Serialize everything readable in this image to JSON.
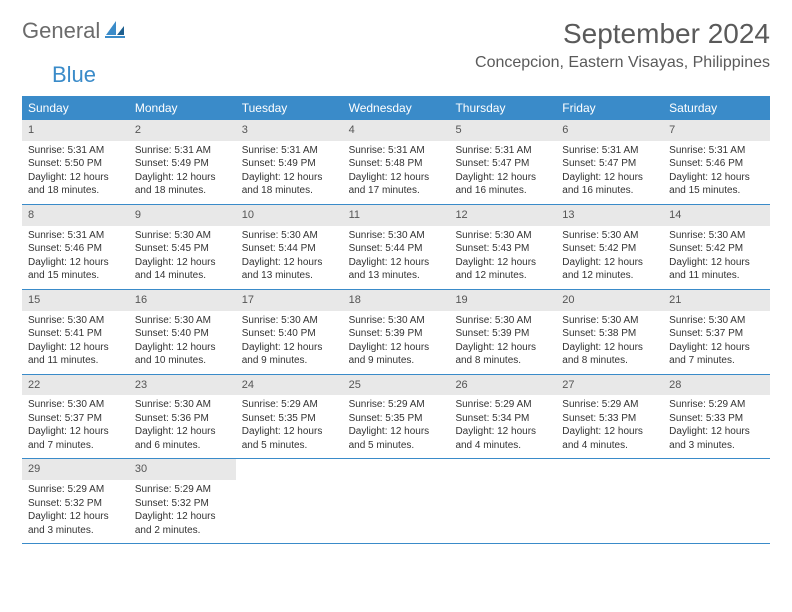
{
  "logo": {
    "word1": "General",
    "word2": "Blue"
  },
  "title": "September 2024",
  "location": "Concepcion, Eastern Visayas, Philippines",
  "colors": {
    "header_bg": "#3a8bc9",
    "daynum_bg": "#e8e8e8",
    "text": "#333333",
    "title_text": "#5a5a5a",
    "border": "#3a8bc9"
  },
  "day_headers": [
    "Sunday",
    "Monday",
    "Tuesday",
    "Wednesday",
    "Thursday",
    "Friday",
    "Saturday"
  ],
  "weeks": [
    [
      {
        "n": "1",
        "sr": "Sunrise: 5:31 AM",
        "ss": "Sunset: 5:50 PM",
        "d1": "Daylight: 12 hours",
        "d2": "and 18 minutes."
      },
      {
        "n": "2",
        "sr": "Sunrise: 5:31 AM",
        "ss": "Sunset: 5:49 PM",
        "d1": "Daylight: 12 hours",
        "d2": "and 18 minutes."
      },
      {
        "n": "3",
        "sr": "Sunrise: 5:31 AM",
        "ss": "Sunset: 5:49 PM",
        "d1": "Daylight: 12 hours",
        "d2": "and 18 minutes."
      },
      {
        "n": "4",
        "sr": "Sunrise: 5:31 AM",
        "ss": "Sunset: 5:48 PM",
        "d1": "Daylight: 12 hours",
        "d2": "and 17 minutes."
      },
      {
        "n": "5",
        "sr": "Sunrise: 5:31 AM",
        "ss": "Sunset: 5:47 PM",
        "d1": "Daylight: 12 hours",
        "d2": "and 16 minutes."
      },
      {
        "n": "6",
        "sr": "Sunrise: 5:31 AM",
        "ss": "Sunset: 5:47 PM",
        "d1": "Daylight: 12 hours",
        "d2": "and 16 minutes."
      },
      {
        "n": "7",
        "sr": "Sunrise: 5:31 AM",
        "ss": "Sunset: 5:46 PM",
        "d1": "Daylight: 12 hours",
        "d2": "and 15 minutes."
      }
    ],
    [
      {
        "n": "8",
        "sr": "Sunrise: 5:31 AM",
        "ss": "Sunset: 5:46 PM",
        "d1": "Daylight: 12 hours",
        "d2": "and 15 minutes."
      },
      {
        "n": "9",
        "sr": "Sunrise: 5:30 AM",
        "ss": "Sunset: 5:45 PM",
        "d1": "Daylight: 12 hours",
        "d2": "and 14 minutes."
      },
      {
        "n": "10",
        "sr": "Sunrise: 5:30 AM",
        "ss": "Sunset: 5:44 PM",
        "d1": "Daylight: 12 hours",
        "d2": "and 13 minutes."
      },
      {
        "n": "11",
        "sr": "Sunrise: 5:30 AM",
        "ss": "Sunset: 5:44 PM",
        "d1": "Daylight: 12 hours",
        "d2": "and 13 minutes."
      },
      {
        "n": "12",
        "sr": "Sunrise: 5:30 AM",
        "ss": "Sunset: 5:43 PM",
        "d1": "Daylight: 12 hours",
        "d2": "and 12 minutes."
      },
      {
        "n": "13",
        "sr": "Sunrise: 5:30 AM",
        "ss": "Sunset: 5:42 PM",
        "d1": "Daylight: 12 hours",
        "d2": "and 12 minutes."
      },
      {
        "n": "14",
        "sr": "Sunrise: 5:30 AM",
        "ss": "Sunset: 5:42 PM",
        "d1": "Daylight: 12 hours",
        "d2": "and 11 minutes."
      }
    ],
    [
      {
        "n": "15",
        "sr": "Sunrise: 5:30 AM",
        "ss": "Sunset: 5:41 PM",
        "d1": "Daylight: 12 hours",
        "d2": "and 11 minutes."
      },
      {
        "n": "16",
        "sr": "Sunrise: 5:30 AM",
        "ss": "Sunset: 5:40 PM",
        "d1": "Daylight: 12 hours",
        "d2": "and 10 minutes."
      },
      {
        "n": "17",
        "sr": "Sunrise: 5:30 AM",
        "ss": "Sunset: 5:40 PM",
        "d1": "Daylight: 12 hours",
        "d2": "and 9 minutes."
      },
      {
        "n": "18",
        "sr": "Sunrise: 5:30 AM",
        "ss": "Sunset: 5:39 PM",
        "d1": "Daylight: 12 hours",
        "d2": "and 9 minutes."
      },
      {
        "n": "19",
        "sr": "Sunrise: 5:30 AM",
        "ss": "Sunset: 5:39 PM",
        "d1": "Daylight: 12 hours",
        "d2": "and 8 minutes."
      },
      {
        "n": "20",
        "sr": "Sunrise: 5:30 AM",
        "ss": "Sunset: 5:38 PM",
        "d1": "Daylight: 12 hours",
        "d2": "and 8 minutes."
      },
      {
        "n": "21",
        "sr": "Sunrise: 5:30 AM",
        "ss": "Sunset: 5:37 PM",
        "d1": "Daylight: 12 hours",
        "d2": "and 7 minutes."
      }
    ],
    [
      {
        "n": "22",
        "sr": "Sunrise: 5:30 AM",
        "ss": "Sunset: 5:37 PM",
        "d1": "Daylight: 12 hours",
        "d2": "and 7 minutes."
      },
      {
        "n": "23",
        "sr": "Sunrise: 5:30 AM",
        "ss": "Sunset: 5:36 PM",
        "d1": "Daylight: 12 hours",
        "d2": "and 6 minutes."
      },
      {
        "n": "24",
        "sr": "Sunrise: 5:29 AM",
        "ss": "Sunset: 5:35 PM",
        "d1": "Daylight: 12 hours",
        "d2": "and 5 minutes."
      },
      {
        "n": "25",
        "sr": "Sunrise: 5:29 AM",
        "ss": "Sunset: 5:35 PM",
        "d1": "Daylight: 12 hours",
        "d2": "and 5 minutes."
      },
      {
        "n": "26",
        "sr": "Sunrise: 5:29 AM",
        "ss": "Sunset: 5:34 PM",
        "d1": "Daylight: 12 hours",
        "d2": "and 4 minutes."
      },
      {
        "n": "27",
        "sr": "Sunrise: 5:29 AM",
        "ss": "Sunset: 5:33 PM",
        "d1": "Daylight: 12 hours",
        "d2": "and 4 minutes."
      },
      {
        "n": "28",
        "sr": "Sunrise: 5:29 AM",
        "ss": "Sunset: 5:33 PM",
        "d1": "Daylight: 12 hours",
        "d2": "and 3 minutes."
      }
    ],
    [
      {
        "n": "29",
        "sr": "Sunrise: 5:29 AM",
        "ss": "Sunset: 5:32 PM",
        "d1": "Daylight: 12 hours",
        "d2": "and 3 minutes."
      },
      {
        "n": "30",
        "sr": "Sunrise: 5:29 AM",
        "ss": "Sunset: 5:32 PM",
        "d1": "Daylight: 12 hours",
        "d2": "and 2 minutes."
      },
      {
        "empty": true
      },
      {
        "empty": true
      },
      {
        "empty": true
      },
      {
        "empty": true
      },
      {
        "empty": true
      }
    ]
  ]
}
